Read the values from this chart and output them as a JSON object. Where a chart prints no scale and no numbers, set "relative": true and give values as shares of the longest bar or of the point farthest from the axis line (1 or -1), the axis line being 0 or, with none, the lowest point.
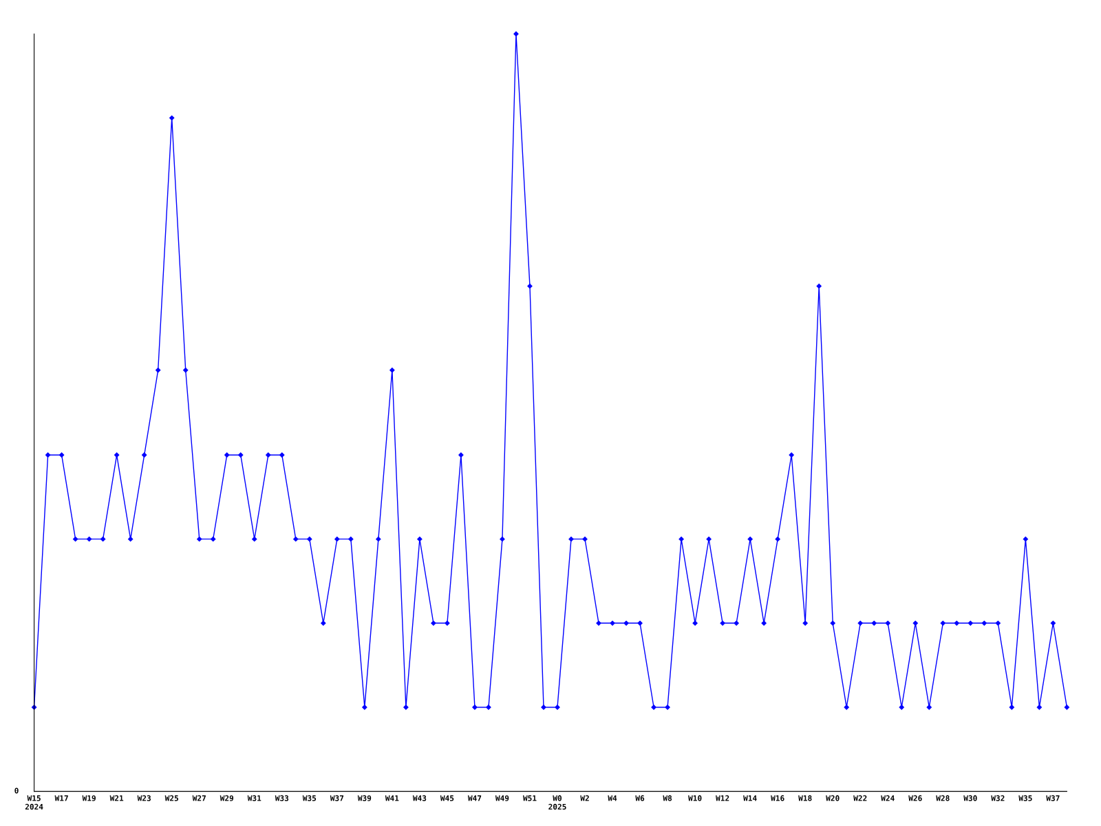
{
  "chart_data": {
    "type": "line",
    "relative": true,
    "annotations": [
      "0"
    ],
    "categories": [
      "W15\n2024",
      null,
      "W17",
      null,
      "W19",
      null,
      "W21",
      null,
      "W23",
      null,
      "W25",
      null,
      "W27",
      null,
      "W29",
      null,
      "W31",
      null,
      "W33",
      null,
      "W35",
      null,
      "W37",
      null,
      "W39",
      null,
      "W41",
      null,
      "W43",
      null,
      "W45",
      null,
      "W47",
      null,
      "W49",
      null,
      "W51",
      null,
      "W0\n2025",
      null,
      "W2",
      null,
      "W4",
      null,
      "W6",
      null,
      "W8",
      null,
      "W10",
      null,
      "W12",
      null,
      "W14",
      null,
      "W16",
      null,
      "W18",
      null,
      "W20",
      null,
      "W22",
      null,
      "W24",
      null,
      "W26",
      null,
      "W28",
      null,
      "W30",
      null,
      "W32",
      null,
      "W35",
      null,
      "W37",
      null
    ],
    "series": [
      {
        "color": "#0000ff",
        "values": [
          0.111,
          0.444,
          0.444,
          0.333,
          0.333,
          0.333,
          0.444,
          0.333,
          0.444,
          0.556,
          0.889,
          0.556,
          0.333,
          0.333,
          0.444,
          0.444,
          0.333,
          0.444,
          0.444,
          0.333,
          0.333,
          0.222,
          0.333,
          0.333,
          0.111,
          0.333,
          0.556,
          0.111,
          0.333,
          0.222,
          0.222,
          0.444,
          0.111,
          0.111,
          0.333,
          1,
          0.667,
          0.111,
          0.111,
          0.333,
          0.333,
          0.222,
          0.222,
          0.222,
          0.222,
          0.111,
          0.111,
          0.333,
          0.222,
          0.333,
          0.222,
          0.222,
          0.333,
          0.222,
          0.333,
          0.444,
          0.222,
          0.667,
          0.222,
          0.111,
          0.222,
          0.222,
          0.222,
          0.111,
          0.222,
          0.111,
          0.222,
          0.222,
          0.222,
          0.222,
          0.222,
          0.111,
          0.333,
          0.111,
          0.222,
          0.111
        ]
      }
    ],
    "marker": "diamond",
    "grid": false
  }
}
